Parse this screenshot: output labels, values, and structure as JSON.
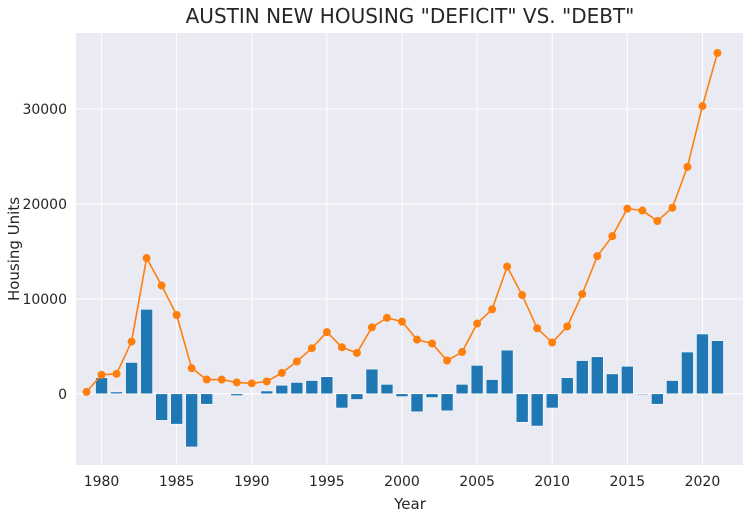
{
  "chart_data": {
    "type": "bar",
    "title": "AUSTIN NEW HOUSING \"DEFICIT\" VS. \"DEBT\"",
    "xlabel": "Year",
    "ylabel": "Housing Units",
    "xlim": [
      1978.3,
      2022.7
    ],
    "ylim": [
      -7500,
      38000
    ],
    "grid": true,
    "legend": "none",
    "x_ticks": [
      1980,
      1985,
      1990,
      1995,
      2000,
      2005,
      2010,
      2015,
      2020
    ],
    "y_ticks": [
      0,
      10000,
      20000,
      30000
    ],
    "x": [
      1979,
      1980,
      1981,
      1982,
      1983,
      1984,
      1985,
      1986,
      1987,
      1988,
      1989,
      1990,
      1991,
      1992,
      1993,
      1994,
      1995,
      1996,
      1997,
      1998,
      1999,
      2000,
      2001,
      2002,
      2003,
      2004,
      2005,
      2006,
      2007,
      2008,
      2009,
      2010,
      2011,
      2012,
      2013,
      2014,
      2015,
      2016,
      2017,
      2018,
      2019,
      2020,
      2021
    ],
    "series": [
      {
        "type": "bar",
        "color": "#1f77b4",
        "values": [
          0,
          1700,
          200,
          3300,
          8900,
          -2800,
          -3200,
          -5600,
          -1100,
          0,
          -200,
          0,
          300,
          900,
          1200,
          1400,
          1800,
          -1500,
          -600,
          2600,
          1000,
          -300,
          -1900,
          -400,
          -1800,
          1000,
          3000,
          1500,
          4600,
          -3000,
          -3400,
          -1500,
          1700,
          3500,
          3900,
          2100,
          2900,
          -100,
          -1100,
          1400,
          4400,
          6300,
          5600
        ]
      },
      {
        "type": "line",
        "color": "#ff7f0e",
        "values": [
          200,
          2000,
          2100,
          5500,
          14300,
          11400,
          8300,
          2700,
          1500,
          1500,
          1200,
          1100,
          1300,
          2200,
          3400,
          4800,
          6500,
          4900,
          4300,
          7000,
          8000,
          7600,
          5700,
          5300,
          3500,
          4400,
          7400,
          8900,
          13400,
          10400,
          6900,
          5400,
          7100,
          10500,
          14500,
          16600,
          19500,
          19300,
          18200,
          19600,
          23900,
          30300,
          35900
        ]
      }
    ]
  }
}
